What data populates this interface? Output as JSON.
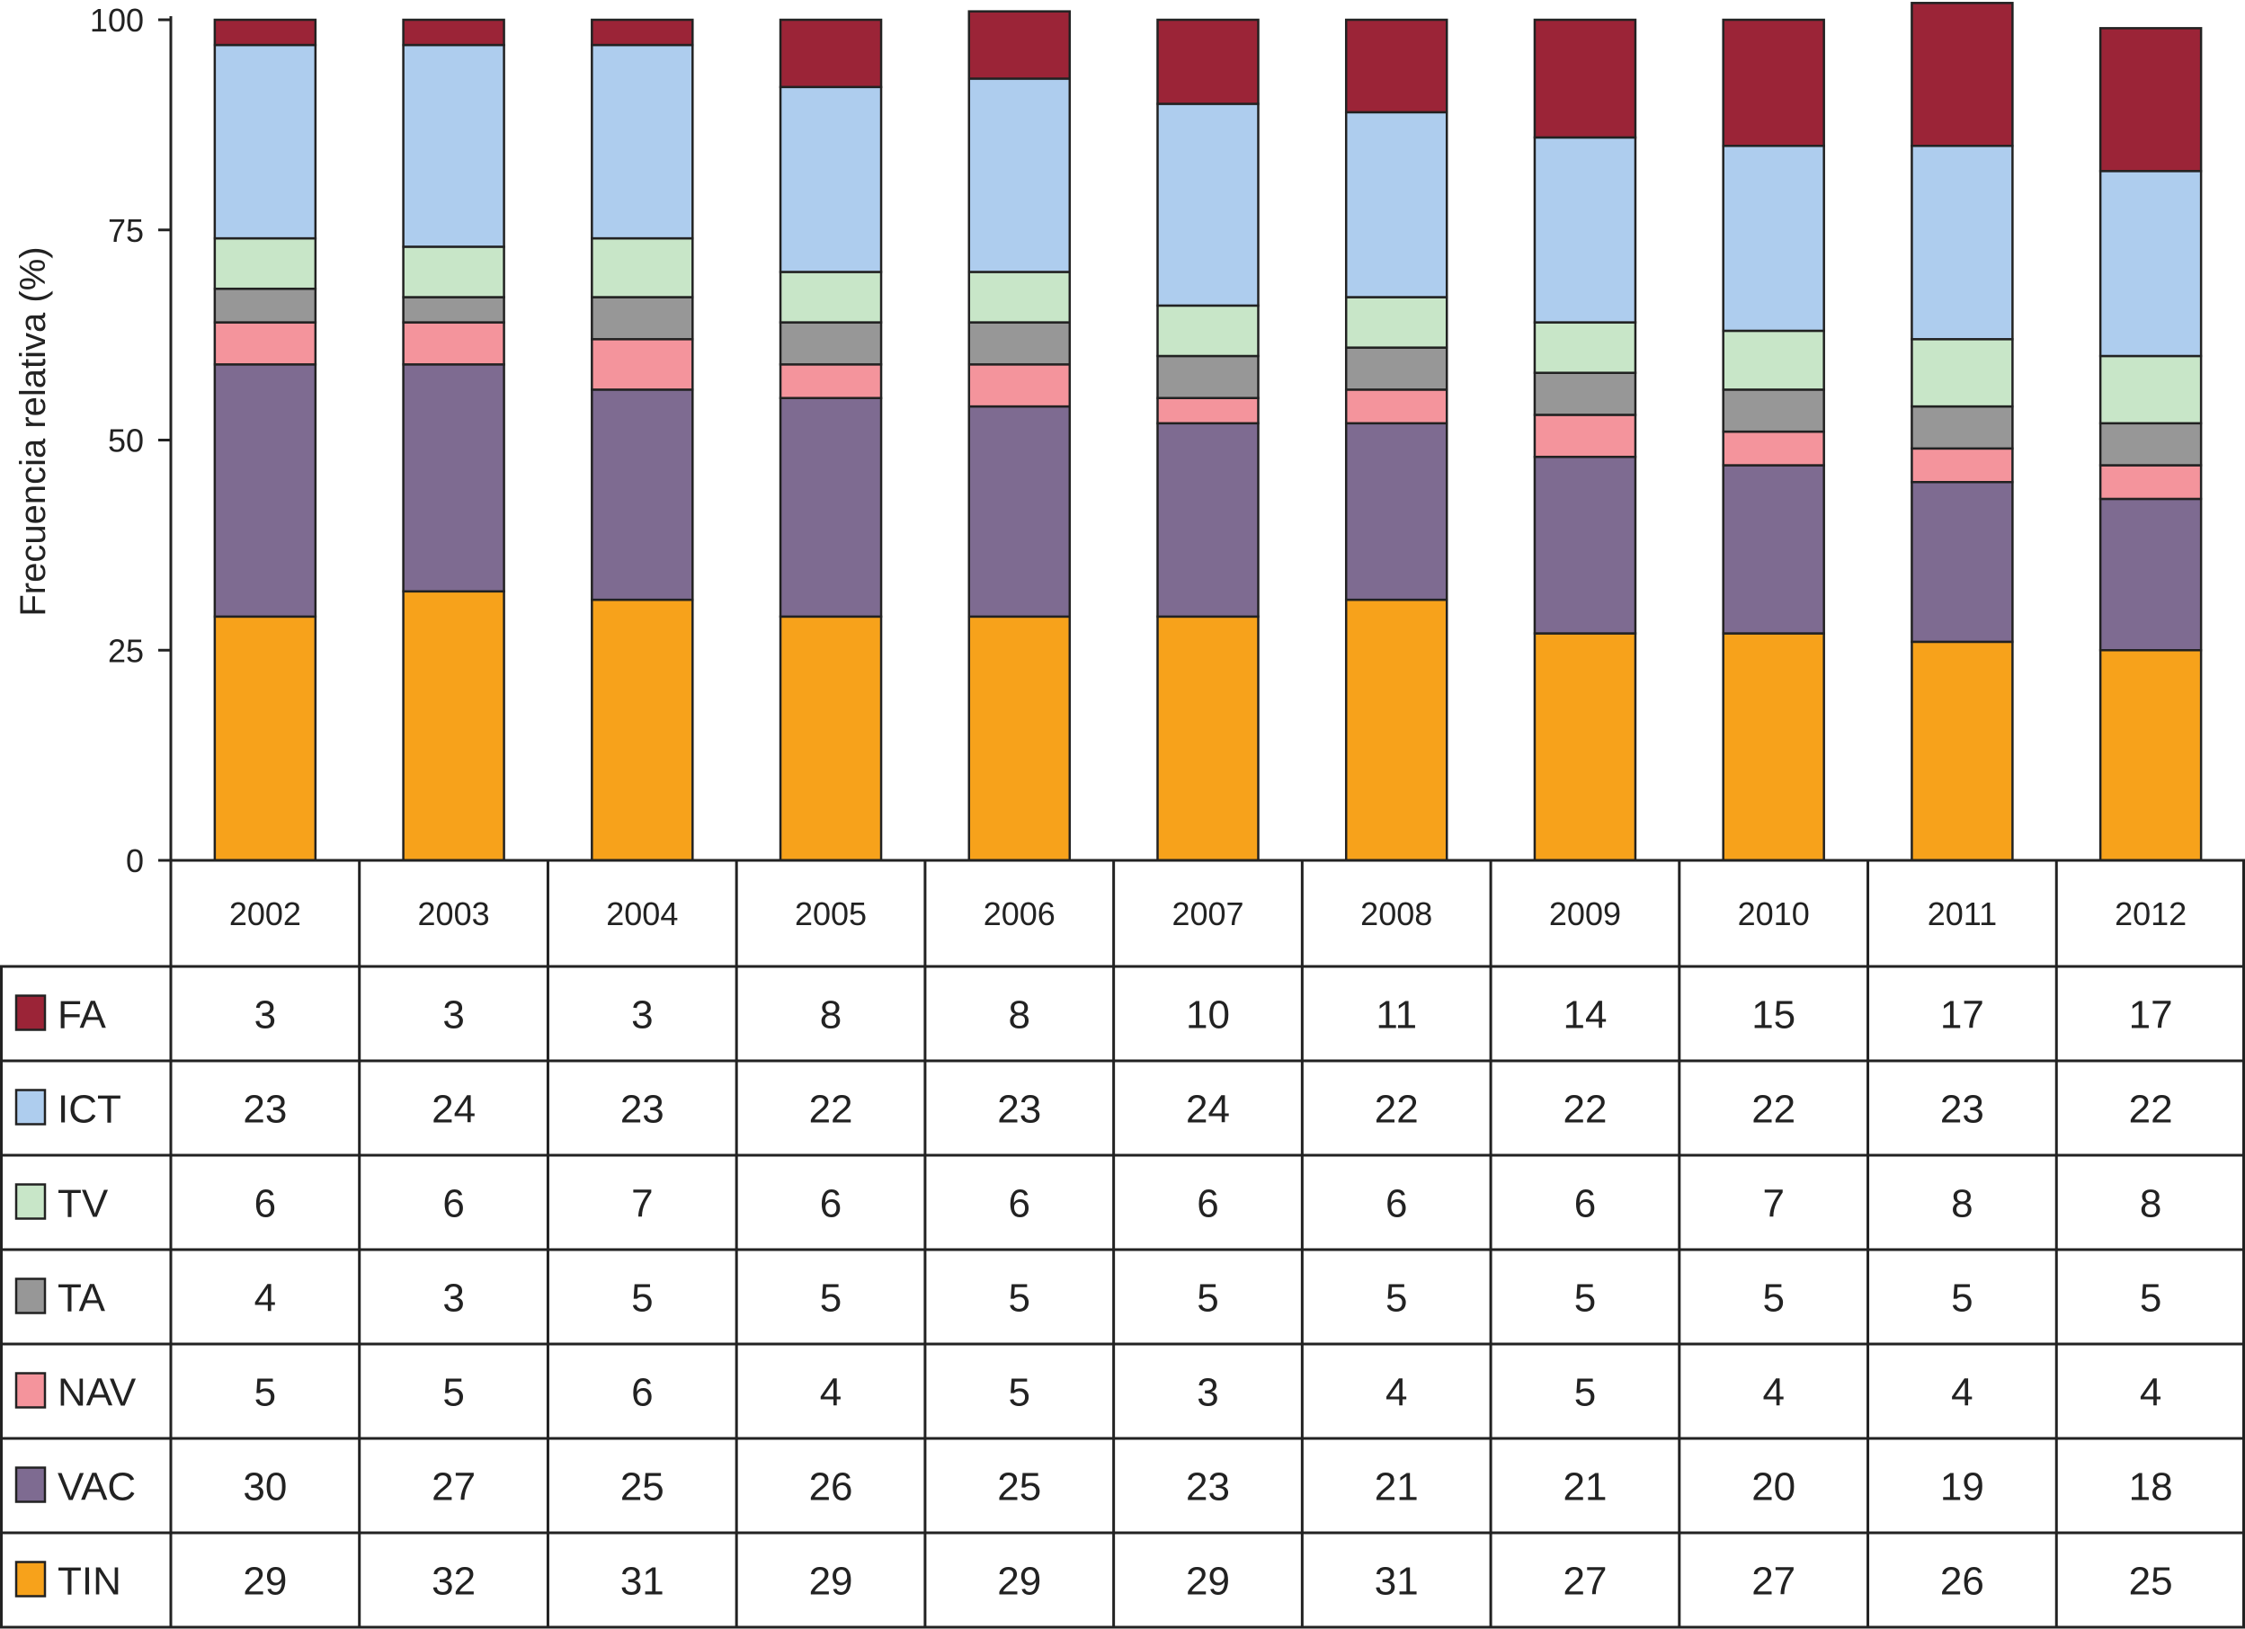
{
  "chart_data": {
    "type": "bar",
    "stacked": true,
    "ylabel": "Frecuencia relativa (%)",
    "xlabel": "",
    "title": "",
    "ylim": [
      0,
      100
    ],
    "yticks": [
      0,
      25,
      50,
      75,
      100
    ],
    "grid": false,
    "legend": "data-table-left",
    "categories": [
      "2002",
      "2003",
      "2004",
      "2005",
      "2006",
      "2007",
      "2008",
      "2009",
      "2010",
      "2011",
      "2012"
    ],
    "series": [
      {
        "name": "TIN",
        "color": "#f7a21b",
        "values": [
          29,
          32,
          31,
          29,
          29,
          29,
          31,
          27,
          27,
          26,
          25
        ]
      },
      {
        "name": "VAC",
        "color": "#7e6b91",
        "values": [
          30,
          27,
          25,
          26,
          25,
          23,
          21,
          21,
          20,
          19,
          18
        ]
      },
      {
        "name": "NAV",
        "color": "#f4949c",
        "values": [
          5,
          5,
          6,
          4,
          5,
          3,
          4,
          5,
          4,
          4,
          4
        ]
      },
      {
        "name": "TA",
        "color": "#979797",
        "values": [
          4,
          3,
          5,
          5,
          5,
          5,
          5,
          5,
          5,
          5,
          5
        ]
      },
      {
        "name": "TV",
        "color": "#c8e6c8",
        "values": [
          6,
          6,
          7,
          6,
          6,
          6,
          6,
          6,
          7,
          8,
          8
        ]
      },
      {
        "name": "ICT",
        "color": "#aecdee",
        "values": [
          23,
          24,
          23,
          22,
          23,
          24,
          22,
          22,
          22,
          23,
          22
        ]
      },
      {
        "name": "FA",
        "color": "#9b2437",
        "values": [
          3,
          3,
          3,
          8,
          8,
          10,
          11,
          14,
          15,
          17,
          17
        ]
      }
    ],
    "table_row_order": [
      "FA",
      "ICT",
      "TV",
      "TA",
      "NAV",
      "VAC",
      "TIN"
    ]
  }
}
